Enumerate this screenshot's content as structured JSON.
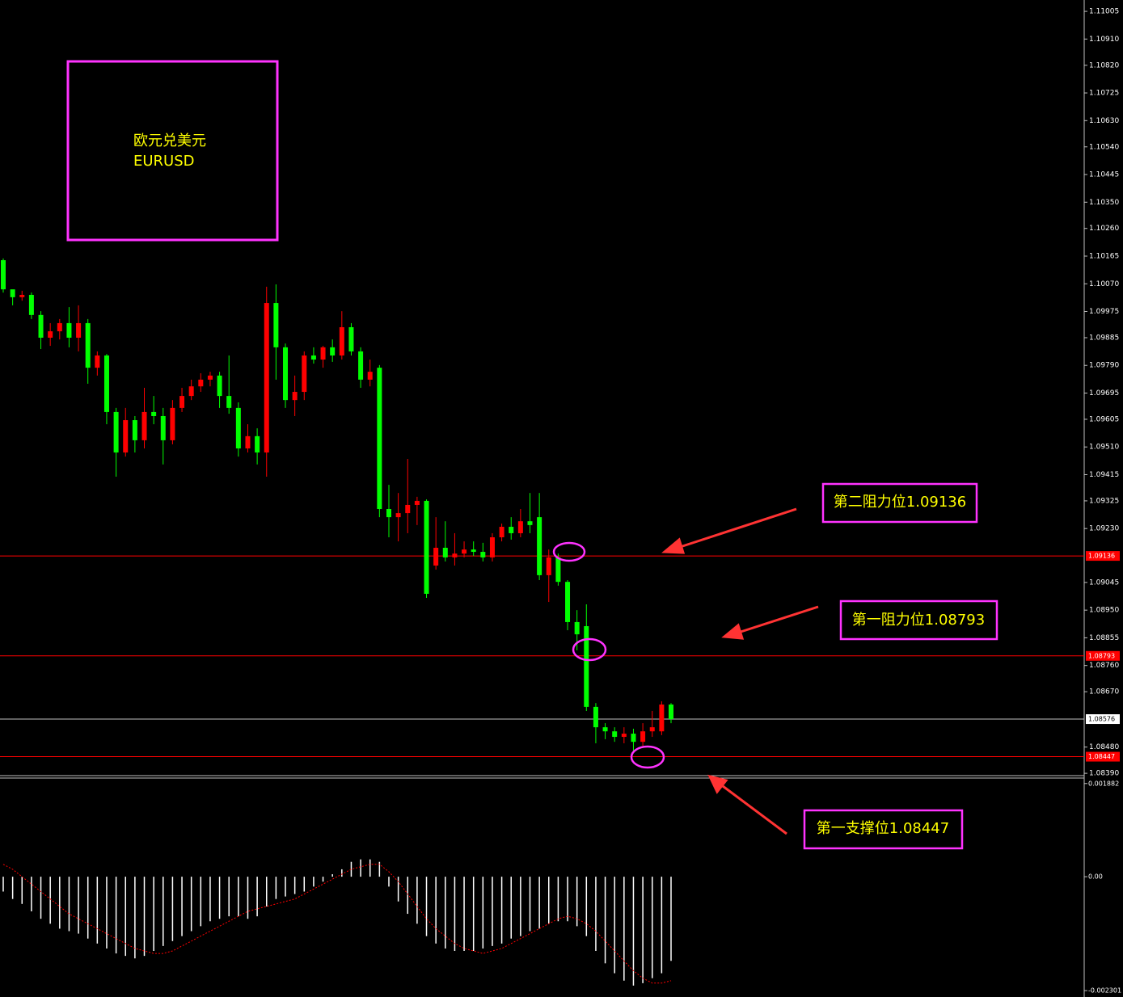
{
  "chart_data": [
    {
      "type": "candlestick",
      "title": "欧元兑美元",
      "subtitle": "EURUSD",
      "up_color": "#ff0000",
      "down_color": "#00ff00",
      "open": [
        1.10151,
        1.10051,
        1.10024,
        1.10032,
        1.09963,
        1.09885,
        1.09907,
        1.09935,
        1.09885,
        1.09935,
        1.09782,
        1.09824,
        1.0963,
        1.09491,
        1.09602,
        1.09533,
        1.0963,
        1.09616,
        1.09533,
        1.09644,
        1.09685,
        1.09718,
        1.09741,
        1.09755,
        1.09685,
        1.09644,
        1.09505,
        1.09547,
        1.09491,
        1.10004,
        1.09852,
        1.09671,
        1.09699,
        1.09824,
        1.0981,
        1.09852,
        1.09824,
        1.09921,
        1.09838,
        1.09741,
        1.09782,
        1.09297,
        1.09269,
        1.09283,
        1.09311,
        1.09325,
        1.09103,
        1.09164,
        1.09131,
        1.09144,
        1.09158,
        1.0915,
        1.09131,
        1.092,
        1.09236,
        1.09214,
        1.09255,
        1.09269,
        1.0907,
        1.09131,
        1.09047,
        1.08909,
        1.08895,
        1.08618,
        1.08548,
        1.08534,
        1.08515,
        1.08526,
        1.08498,
        1.08534,
        1.08534,
        1.08626
      ],
      "high": [
        1.10157,
        1.10046,
        1.10046,
        1.1004,
        1.09976,
        1.09935,
        1.09949,
        1.0999,
        1.09996,
        1.09949,
        1.09838,
        1.09829,
        1.09644,
        1.09644,
        1.09616,
        1.09713,
        1.09685,
        1.09644,
        1.09671,
        1.09713,
        1.09741,
        1.09763,
        1.09768,
        1.09768,
        1.09824,
        1.09663,
        1.09588,
        1.09574,
        1.1006,
        1.10068,
        1.09865,
        1.09755,
        1.09838,
        1.09852,
        1.09857,
        1.09879,
        1.09976,
        1.09935,
        1.09852,
        1.0981,
        1.09791,
        1.0938,
        1.09352,
        1.09469,
        1.09339,
        1.0933,
        1.09269,
        1.09255,
        1.09214,
        1.09186,
        1.09186,
        1.09181,
        1.09214,
        1.09247,
        1.09269,
        1.09297,
        1.09352,
        1.09352,
        1.09158,
        1.09144,
        1.09053,
        1.0895,
        1.0897,
        1.08631,
        1.08562,
        1.08548,
        1.08548,
        1.08543,
        1.08562,
        1.08604,
        1.08637,
        1.08631
      ],
      "low": [
        1.1004,
        1.09996,
        1.10012,
        1.09949,
        1.09846,
        1.09857,
        1.09879,
        1.09852,
        1.09838,
        1.09727,
        1.09755,
        1.09588,
        1.09408,
        1.09477,
        1.09491,
        1.09505,
        1.09588,
        1.0945,
        1.09519,
        1.0963,
        1.09671,
        1.09699,
        1.09718,
        1.09644,
        1.09624,
        1.09477,
        1.09491,
        1.0945,
        1.09408,
        1.09741,
        1.09644,
        1.09616,
        1.09671,
        1.09796,
        1.09782,
        1.09802,
        1.0981,
        1.09824,
        1.09713,
        1.09718,
        1.09269,
        1.092,
        1.09186,
        1.09214,
        1.09242,
        1.08992,
        1.09089,
        1.09117,
        1.09103,
        1.09131,
        1.09136,
        1.09117,
        1.09117,
        1.09186,
        1.09192,
        1.092,
        1.09214,
        1.09053,
        1.08978,
        1.09034,
        1.08881,
        1.08812,
        1.08604,
        1.08493,
        1.08507,
        1.08498,
        1.08493,
        1.08465,
        1.08479,
        1.08515,
        1.08521,
        1.08562
      ],
      "close": [
        1.10051,
        1.10024,
        1.10032,
        1.09963,
        1.09885,
        1.09907,
        1.09935,
        1.09885,
        1.09935,
        1.09782,
        1.09824,
        1.0963,
        1.09491,
        1.09602,
        1.09533,
        1.0963,
        1.09616,
        1.09533,
        1.09644,
        1.09685,
        1.09718,
        1.09741,
        1.09755,
        1.09685,
        1.09644,
        1.09505,
        1.09547,
        1.09491,
        1.10004,
        1.09852,
        1.09671,
        1.09699,
        1.09824,
        1.0981,
        1.09852,
        1.09824,
        1.09921,
        1.09838,
        1.09741,
        1.09768,
        1.09297,
        1.09269,
        1.09283,
        1.09311,
        1.09325,
        1.09006,
        1.09164,
        1.09131,
        1.09144,
        1.09158,
        1.0915,
        1.09131,
        1.092,
        1.09236,
        1.09214,
        1.09255,
        1.09242,
        1.0907,
        1.09131,
        1.09047,
        1.08909,
        1.08867,
        1.08618,
        1.08548,
        1.08534,
        1.08515,
        1.08526,
        1.08498,
        1.08534,
        1.08548,
        1.08626,
        1.08576
      ],
      "ylim": [
        1.08382,
        1.11044
      ],
      "yticks": [
        1.11005,
        {
          "value": 1.1091,
          "label": "1.10910"
        },
        {
          "value": 1.1082,
          "label": "1.10820"
        },
        1.10725,
        {
          "value": 1.1063,
          "label": "1.10630"
        },
        {
          "value": 1.1054,
          "label": "1.10540"
        },
        1.10445,
        {
          "value": 1.1035,
          "label": "1.10350"
        },
        {
          "value": 1.1026,
          "label": "1.10260"
        },
        1.10165,
        {
          "value": 1.1007,
          "label": "1.10070"
        },
        1.09975,
        1.09885,
        {
          "value": 1.0979,
          "label": "1.09790"
        },
        1.09695,
        1.09605,
        {
          "value": 1.0951,
          "label": "1.09510"
        },
        1.09415,
        1.09325,
        {
          "value": 1.0923,
          "label": "1.09230"
        },
        1.09045,
        {
          "value": 1.0895,
          "label": "1.08950"
        },
        1.08855,
        {
          "value": 1.0876,
          "label": "1.08760"
        },
        {
          "value": 1.0867,
          "label": "1.08670"
        },
        {
          "value": 1.0848,
          "label": "1.08480"
        },
        {
          "value": 1.0839,
          "label": "1.08390"
        }
      ],
      "levels": [
        {
          "value": 1.09136,
          "color": "#ff0000"
        },
        {
          "value": 1.08793,
          "color": "#ff0000"
        },
        {
          "value": 1.08576,
          "color": "#c0c0c0"
        },
        {
          "value": 1.08447,
          "color": "#ff0000"
        }
      ],
      "annotations": [
        "第二阻力位1.09136",
        "第一阻力位1.08793",
        "第一支撑位1.08447"
      ]
    },
    {
      "type": "macd",
      "histogram": {
        "color": "#ffffff",
        "values": [
          -0.0003,
          -0.00045,
          -0.00055,
          -0.0007,
          -0.00085,
          -0.00095,
          -0.00105,
          -0.0011,
          -0.00115,
          -0.00125,
          -0.00135,
          -0.00145,
          -0.00155,
          -0.0016,
          -0.00165,
          -0.0016,
          -0.0015,
          -0.0014,
          -0.0013,
          -0.0012,
          -0.0011,
          -0.001,
          -0.0009,
          -0.00085,
          -0.0008,
          -0.0008,
          -0.00085,
          -0.0008,
          -0.0006,
          -0.00045,
          -0.0004,
          -0.00035,
          -0.0003,
          -0.0002,
          -0.0001,
          5e-05,
          0.00015,
          0.0003,
          0.00035,
          0.00035,
          0.0003,
          -0.0002,
          -0.0005,
          -0.00075,
          -0.00095,
          -0.0012,
          -0.00135,
          -0.00145,
          -0.0015,
          -0.0015,
          -0.0015,
          -0.00145,
          -0.0014,
          -0.00135,
          -0.00125,
          -0.0012,
          -0.0011,
          -0.00105,
          -0.00095,
          -0.0009,
          -0.0009,
          -0.001,
          -0.0012,
          -0.0015,
          -0.00175,
          -0.00195,
          -0.0021,
          -0.0022,
          -0.00215,
          -0.00205,
          -0.00195,
          -0.0017
        ]
      },
      "signal": {
        "color": "#ff0000",
        "values": [
          0.00025,
          0.00015,
          0,
          -0.00015,
          -0.0003,
          -0.00045,
          -0.0006,
          -0.00075,
          -0.00085,
          -0.00095,
          -0.00105,
          -0.00115,
          -0.00125,
          -0.00135,
          -0.00145,
          -0.0015,
          -0.00155,
          -0.00155,
          -0.0015,
          -0.0014,
          -0.0013,
          -0.0012,
          -0.0011,
          -0.001,
          -0.0009,
          -0.0008,
          -0.0007,
          -0.00065,
          -0.0006,
          -0.00055,
          -0.0005,
          -0.00045,
          -0.00035,
          -0.00025,
          -0.00015,
          -5e-05,
          5e-05,
          0.00015,
          0.0002,
          0.00025,
          0.00025,
          0.0001,
          -0.0001,
          -0.00035,
          -0.0006,
          -0.00085,
          -0.00105,
          -0.0012,
          -0.00135,
          -0.00145,
          -0.0015,
          -0.00155,
          -0.0015,
          -0.00145,
          -0.00135,
          -0.00125,
          -0.00115,
          -0.00105,
          -0.00095,
          -0.00085,
          -0.0008,
          -0.00085,
          -0.00095,
          -0.0011,
          -0.0013,
          -0.0015,
          -0.0017,
          -0.0019,
          -0.00205,
          -0.00215,
          -0.00215,
          -0.0021
        ]
      },
      "ylim": [
        -0.00243,
        0.00196
      ],
      "yticks": [
        0.001882,
        {
          "value": 0,
          "label": "0.00"
        },
        -0.002301
      ]
    }
  ]
}
